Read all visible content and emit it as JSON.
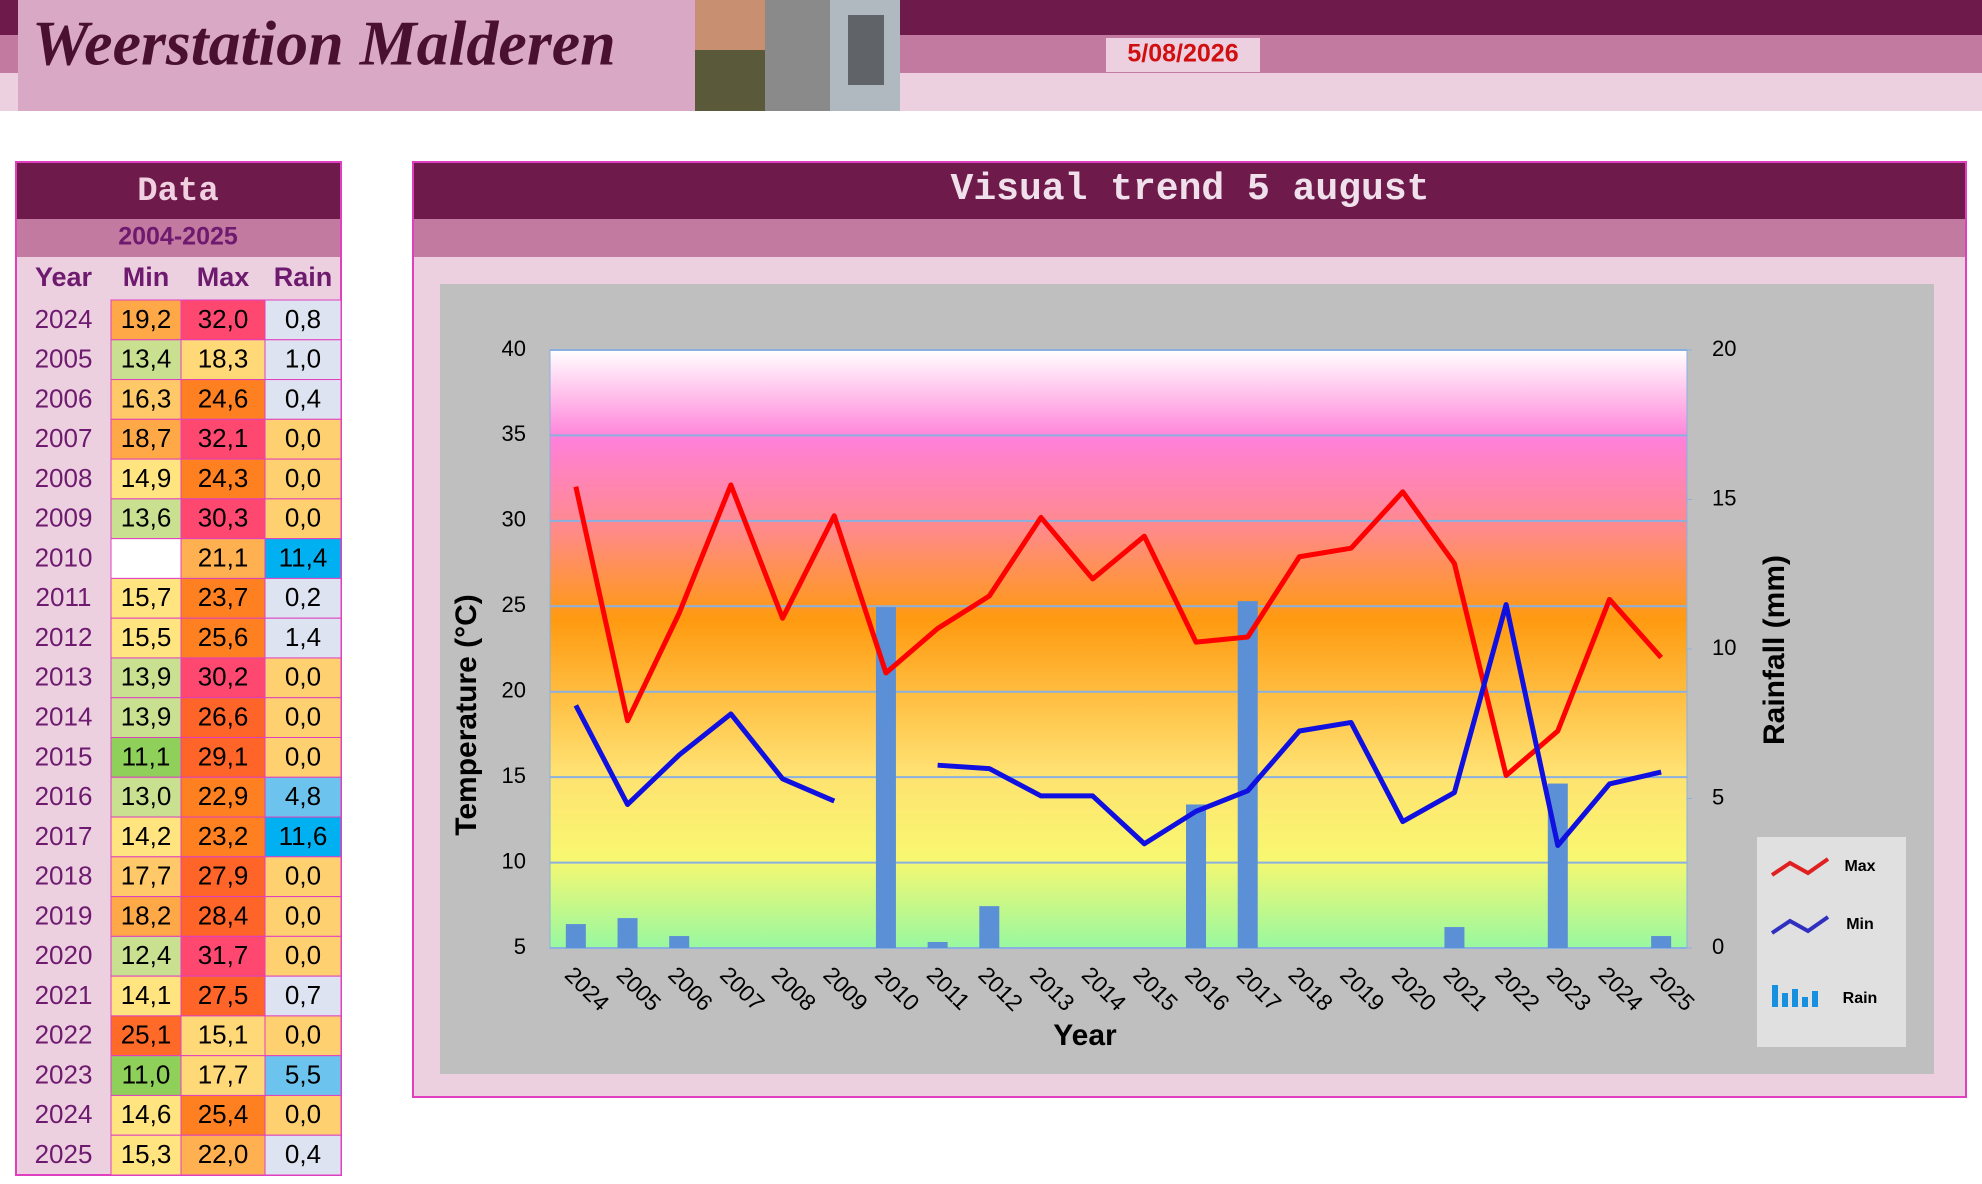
{
  "header": {
    "title": "Weerstation Malderen",
    "date": "5/08/2026"
  },
  "table": {
    "title": "Data",
    "period": "2004-2025",
    "columns": [
      "Year",
      "Min",
      "Max",
      "Rain"
    ],
    "rows": [
      [
        "2024",
        "19,2",
        "32,0",
        "0,8"
      ],
      [
        "2005",
        "13,4",
        "18,3",
        "1,0"
      ],
      [
        "2006",
        "16,3",
        "24,6",
        "0,4"
      ],
      [
        "2007",
        "18,7",
        "32,1",
        "0,0"
      ],
      [
        "2008",
        "14,9",
        "24,3",
        "0,0"
      ],
      [
        "2009",
        "13,6",
        "30,3",
        "0,0"
      ],
      [
        "2010",
        null,
        "21,1",
        "11,4"
      ],
      [
        "2011",
        "15,7",
        "23,7",
        "0,2"
      ],
      [
        "2012",
        "15,5",
        "25,6",
        "1,4"
      ],
      [
        "2013",
        "13,9",
        "30,2",
        "0,0"
      ],
      [
        "2014",
        "13,9",
        "26,6",
        "0,0"
      ],
      [
        "2015",
        "11,1",
        "29,1",
        "0,0"
      ],
      [
        "2016",
        "13,0",
        "22,9",
        "4,8"
      ],
      [
        "2017",
        "14,2",
        "23,2",
        "11,6"
      ],
      [
        "2018",
        "17,7",
        "27,9",
        "0,0"
      ],
      [
        "2019",
        "18,2",
        "28,4",
        "0,0"
      ],
      [
        "2020",
        "12,4",
        "31,7",
        "0,0"
      ],
      [
        "2021",
        "14,1",
        "27,5",
        "0,7"
      ],
      [
        "2022",
        "25,1",
        "15,1",
        "0,0"
      ],
      [
        "2023",
        "11,0",
        "17,7",
        "5,5"
      ],
      [
        "2024",
        "14,6",
        "25,4",
        "0,0"
      ],
      [
        "2025",
        "15,3",
        "22,0",
        "0,4"
      ]
    ]
  },
  "chart_data": {
    "type": "line",
    "title": "Visual trend 5 august",
    "x_label": "Year",
    "y_label": "Temperature (°C)",
    "y2_label": "Rainfall (mm)",
    "categories": [
      "2024",
      "2005",
      "2006",
      "2007",
      "2008",
      "2009",
      "2010",
      "2011",
      "2012",
      "2013",
      "2014",
      "2015",
      "2016",
      "2017",
      "2018",
      "2019",
      "2020",
      "2021",
      "2022",
      "2023",
      "2024",
      "2025"
    ],
    "series": [
      {
        "name": "Max",
        "color": "#ff0000",
        "values": [
          32.0,
          18.3,
          24.6,
          32.1,
          24.3,
          30.3,
          21.1,
          23.7,
          25.6,
          30.2,
          26.6,
          29.1,
          22.9,
          23.2,
          27.9,
          28.4,
          31.7,
          27.5,
          15.1,
          17.7,
          25.4,
          22.0
        ]
      },
      {
        "name": "Min",
        "color": "#1010e0",
        "values": [
          19.2,
          13.4,
          16.3,
          18.7,
          14.9,
          13.6,
          null,
          15.7,
          15.5,
          13.9,
          13.9,
          11.1,
          13.0,
          14.2,
          17.7,
          18.2,
          12.4,
          14.1,
          25.1,
          11.0,
          14.6,
          15.3
        ]
      },
      {
        "name": "Rain",
        "type": "bar",
        "axis": "y2",
        "color": "#5b8fd6",
        "values": [
          0.8,
          1.0,
          0.4,
          0.0,
          0.0,
          0.0,
          11.4,
          0.2,
          1.4,
          0.0,
          0.0,
          0.0,
          4.8,
          11.6,
          0.0,
          0.0,
          0.0,
          0.7,
          0.0,
          5.5,
          0.0,
          0.4
        ]
      }
    ],
    "ylim": [
      5,
      40
    ],
    "yticks": [
      5,
      10,
      15,
      20,
      25,
      30,
      35,
      40
    ],
    "y2lim": [
      0,
      20
    ],
    "y2ticks": [
      0,
      5,
      10,
      15,
      20
    ],
    "grid": true,
    "legend": "lower right"
  }
}
